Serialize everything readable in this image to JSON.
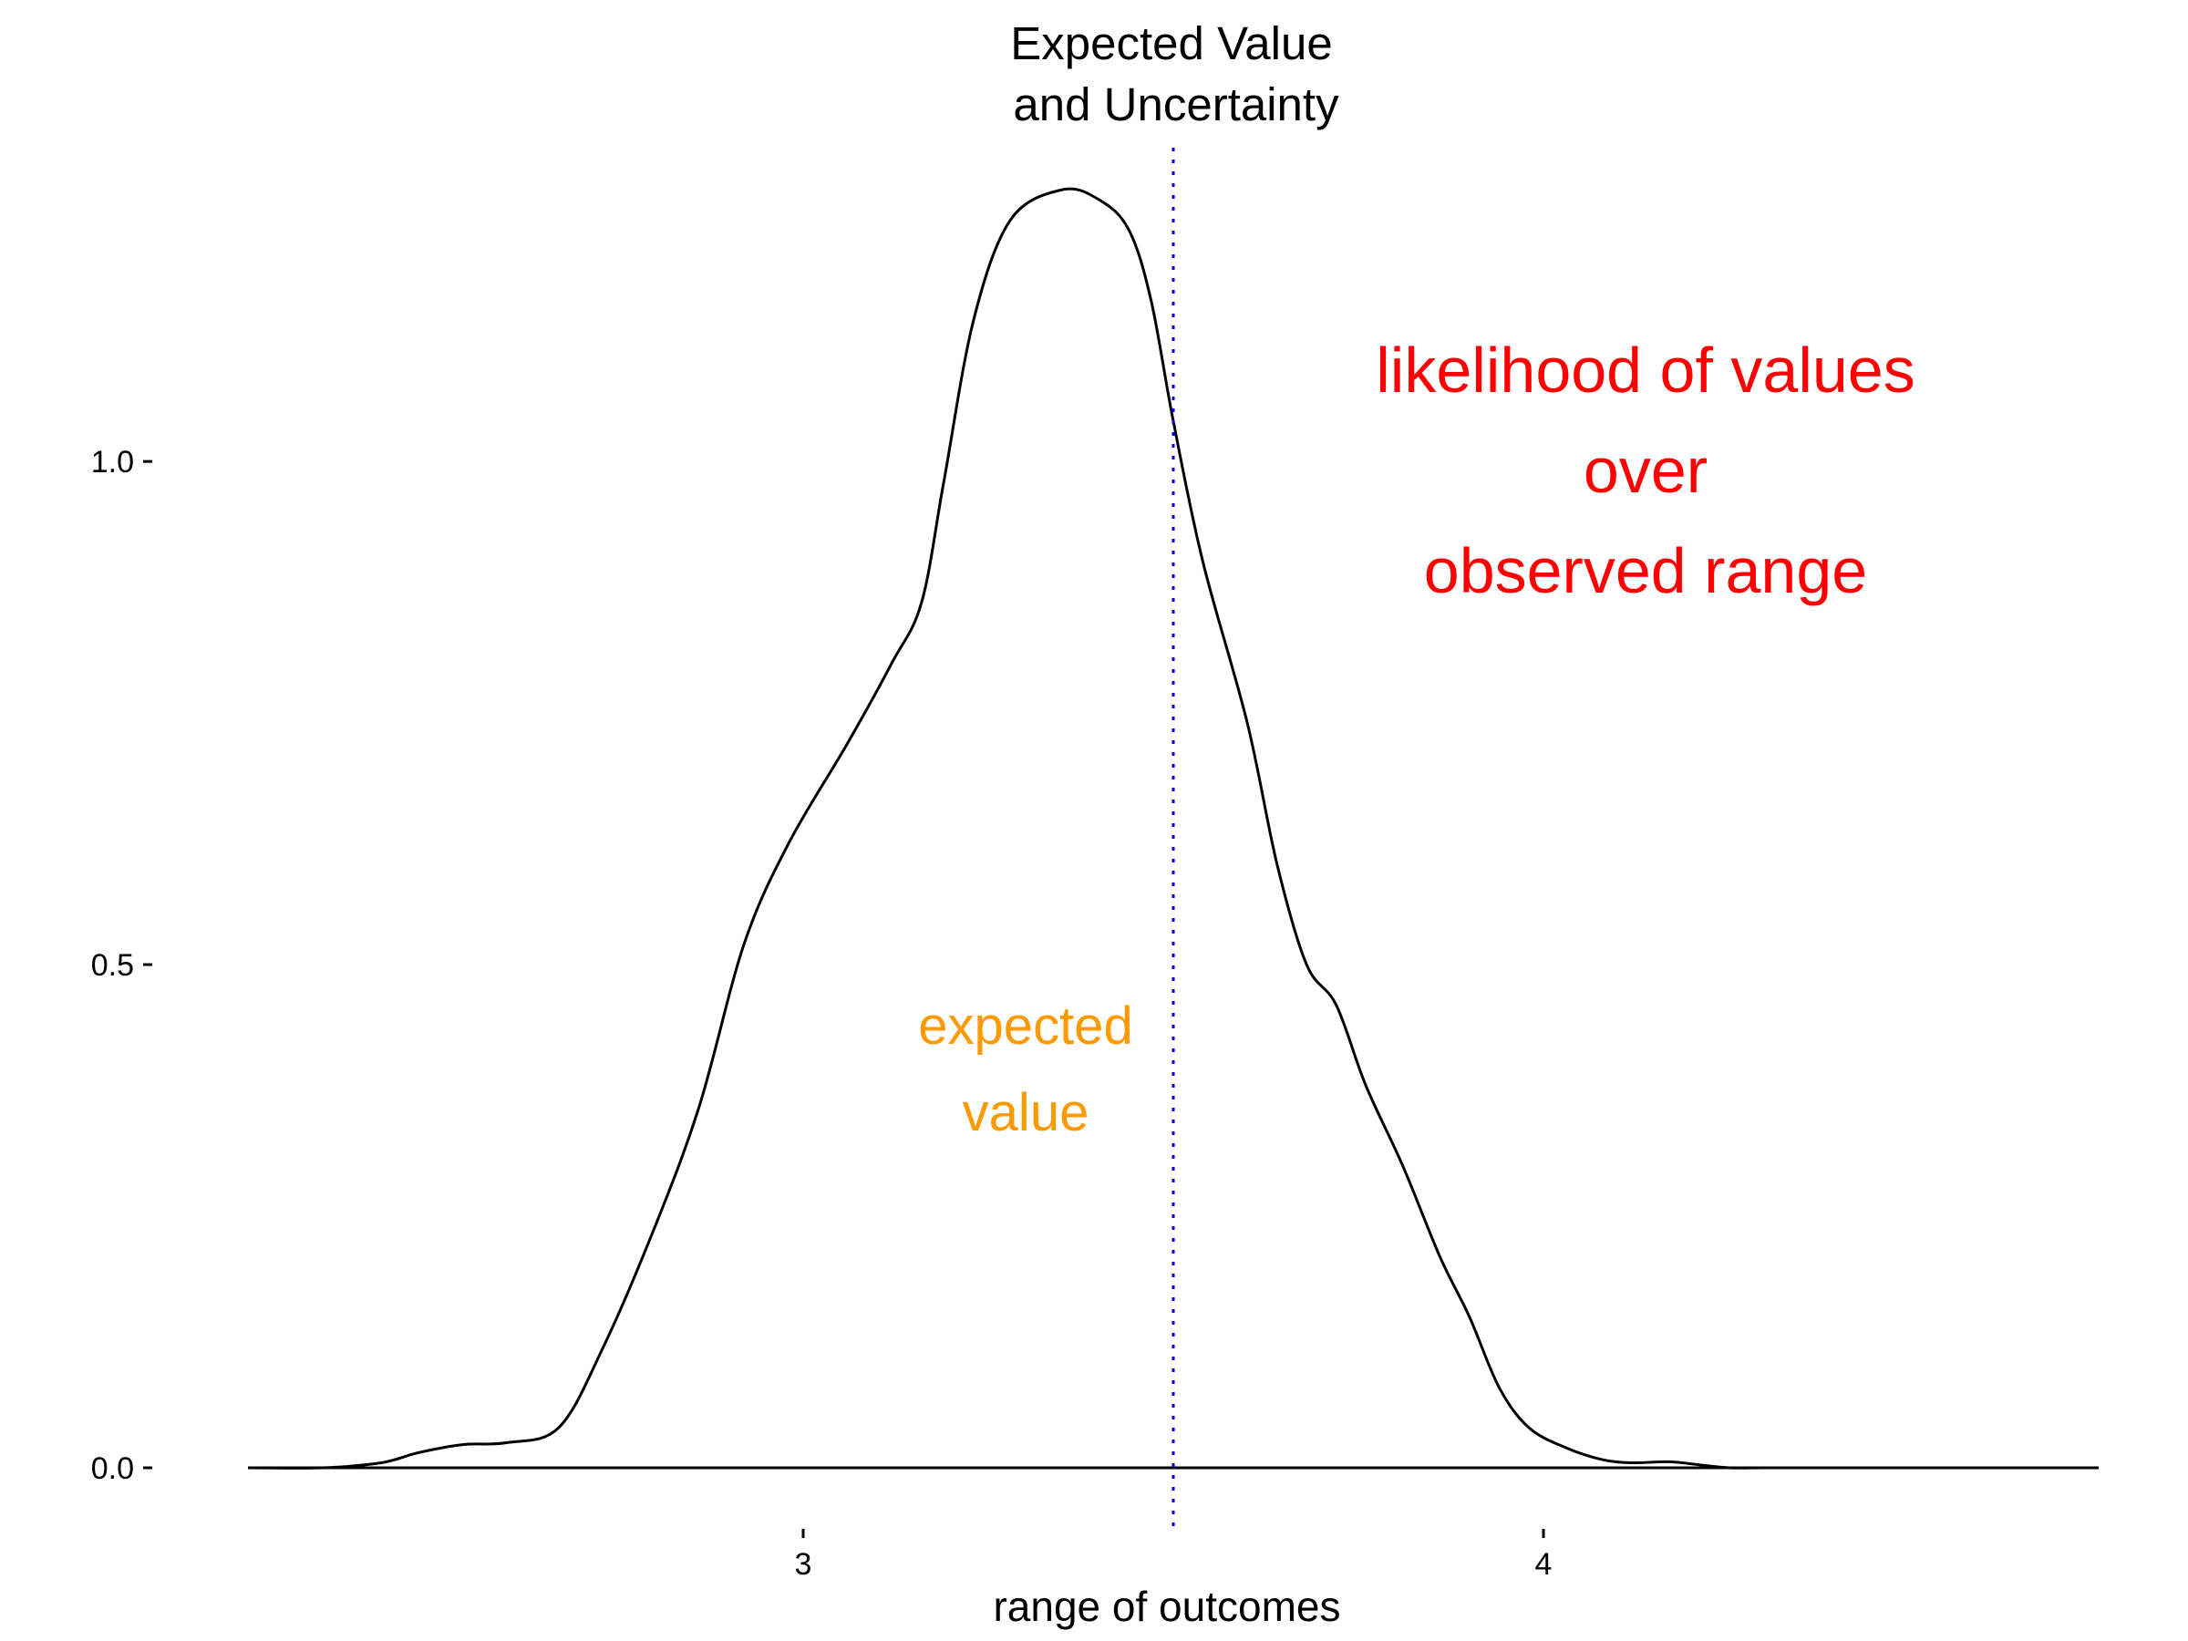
{
  "chart_data": {
    "type": "area",
    "title_lines": [
      "Expected Value",
      "and Uncertainty"
    ],
    "xlabel": "range of outcomes",
    "ylabel": "",
    "xlim": [
      2.25,
      4.75
    ],
    "ylim": [
      0,
      1.3
    ],
    "x_ticks": [
      3,
      4
    ],
    "y_ticks": [
      0.0,
      0.5,
      1.0
    ],
    "x_tick_labels": [
      "3",
      "4"
    ],
    "y_tick_labels": [
      "0.0",
      "0.5",
      "1.0"
    ],
    "grid": false,
    "series": [
      {
        "kind": "density",
        "x": [
          2.25,
          2.35,
          2.43,
          2.48,
          2.54,
          2.6,
          2.67,
          2.73,
          2.8,
          2.86,
          2.92,
          2.98,
          3.06,
          3.12,
          3.16,
          3.19,
          3.23,
          3.28,
          3.35,
          3.4,
          3.44,
          3.47,
          3.5,
          3.54,
          3.6,
          3.64,
          3.68,
          3.72,
          3.76,
          3.81,
          3.86,
          3.9,
          3.94,
          3.98,
          4.03,
          4.08,
          4.12,
          4.17,
          4.21,
          4.25,
          4.3,
          4.37,
          4.45,
          4.53,
          4.6,
          4.75
        ],
        "y": [
          0.0,
          0.0,
          0.005,
          0.015,
          0.023,
          0.025,
          0.04,
          0.12,
          0.24,
          0.36,
          0.52,
          0.62,
          0.72,
          0.8,
          0.86,
          0.98,
          1.14,
          1.24,
          1.27,
          1.26,
          1.23,
          1.16,
          1.04,
          0.9,
          0.74,
          0.6,
          0.5,
          0.46,
          0.38,
          0.3,
          0.21,
          0.15,
          0.08,
          0.04,
          0.02,
          0.008,
          0.005,
          0.006,
          0.003,
          0.0,
          0.0,
          0.0,
          0.0,
          0.0,
          0.0,
          0.0
        ]
      }
    ],
    "expected_value_line": {
      "x": 3.5,
      "color": "#0000ff",
      "style": "dotted"
    },
    "annotations": [
      {
        "lines": [
          "likelihood of values",
          "over",
          "observed range"
        ],
        "color": "#ff0000"
      },
      {
        "lines": [
          "expected",
          "value"
        ],
        "color": "#ff9900"
      }
    ]
  }
}
